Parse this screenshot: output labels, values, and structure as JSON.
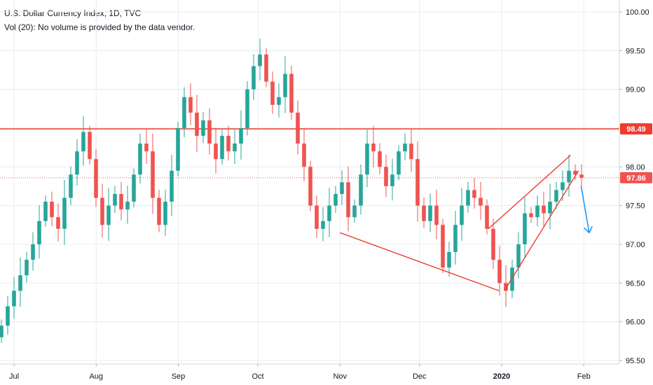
{
  "header": {
    "title": "U.S. Dollar Currency Index, 1D, TVC",
    "subtitle": "Vol (20): No volume is provided by the data vendor."
  },
  "colors": {
    "up": "#26a69a",
    "down": "#ef5350",
    "drawing": "#ef3b2c",
    "arrow": "#2196f3",
    "grid": "#e9ecf1",
    "axis_text": "#131722"
  },
  "chart_data": {
    "type": "candlestick",
    "symbol": "U.S. Dollar Currency Index",
    "interval": "1D",
    "source": "TVC",
    "y_range": [
      95.5,
      100.0
    ],
    "y_ticks": [
      "100.00",
      "99.50",
      "99.00",
      "98.50",
      "98.00",
      "97.50",
      "97.00",
      "96.50",
      "96.00",
      "95.50"
    ],
    "x_ticks": [
      "Jul",
      "Aug",
      "Sep",
      "Oct",
      "Nov",
      "Dec",
      "2020",
      "Feb"
    ],
    "price_tags": [
      {
        "label": "98.49",
        "value": 98.49,
        "style": "solid"
      },
      {
        "label": "97.86",
        "value": 97.86,
        "style": "dotted"
      }
    ],
    "last_price": 97.86,
    "resistance_level": 98.49,
    "close_series": [
      95.95,
      96.2,
      96.4,
      96.6,
      96.8,
      97.0,
      97.3,
      97.55,
      97.35,
      97.2,
      97.6,
      97.9,
      98.2,
      98.45,
      98.1,
      97.6,
      97.25,
      97.5,
      97.65,
      97.45,
      97.55,
      97.9,
      98.3,
      98.2,
      97.6,
      97.25,
      97.55,
      97.95,
      98.5,
      98.9,
      98.7,
      98.4,
      98.6,
      98.3,
      98.1,
      98.4,
      98.2,
      98.3,
      98.5,
      99.0,
      99.3,
      99.45,
      99.1,
      98.8,
      98.9,
      99.2,
      98.7,
      98.3,
      98.0,
      97.5,
      97.2,
      97.3,
      97.5,
      97.65,
      97.8,
      97.35,
      97.5,
      97.9,
      98.3,
      98.2,
      98.0,
      97.75,
      97.9,
      98.2,
      98.3,
      98.1,
      97.5,
      97.3,
      97.5,
      97.25,
      96.7,
      96.9,
      97.25,
      97.5,
      97.7,
      97.6,
      97.5,
      97.2,
      96.8,
      96.5,
      96.4,
      96.7,
      97.0,
      97.4,
      97.35,
      97.5,
      97.4,
      97.55,
      97.7,
      97.8,
      97.95,
      97.9,
      97.86
    ],
    "drawings": [
      {
        "type": "trend_line",
        "from": {
          "date": "2019-11-01",
          "value": 97.15
        },
        "to": {
          "date": "2019-12-31",
          "value": 96.4
        }
      },
      {
        "type": "rising_wedge_upper",
        "from": {
          "date": "2019-12-27",
          "value": 97.2
        },
        "to": {
          "date": "2020-01-27",
          "value": 98.15
        }
      },
      {
        "type": "rising_wedge_lower",
        "from": {
          "date": "2020-01-02",
          "value": 96.4
        },
        "to": {
          "date": "2020-01-30",
          "value": 97.95
        }
      },
      {
        "type": "arrow",
        "direction": "down",
        "from": {
          "date": "2020-01-31",
          "value": 97.75
        },
        "to": {
          "date": "2020-02-03",
          "value": 97.15
        }
      }
    ]
  }
}
